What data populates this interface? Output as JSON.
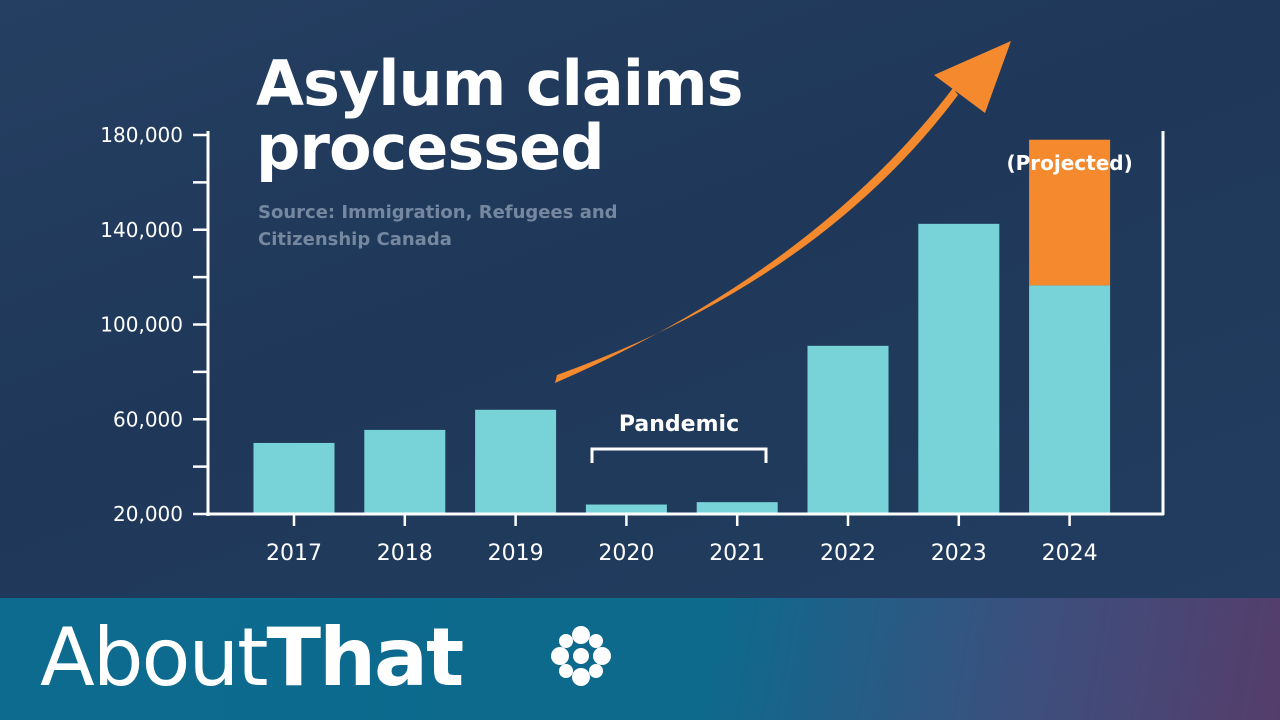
{
  "title": "Asylum claims processed",
  "source": "Source:  Immigration, Refugees and Citizenship Canada",
  "brand": {
    "part1": "About",
    "part2": "That",
    "logo_icon": "cbc-gem-icon"
  },
  "colors": {
    "bar": "#77d3d8",
    "projected": "#f5892d",
    "arrow": "#f5892d",
    "axis": "#ffffff",
    "text": "#ffffff",
    "source_text": "#7687a0",
    "footer": "#0c6b8e"
  },
  "chart_data": {
    "type": "bar",
    "title": "Asylum claims processed",
    "categories": [
      "2017",
      "2018",
      "2019",
      "2020",
      "2021",
      "2022",
      "2023",
      "2024"
    ],
    "series": [
      {
        "values": [
          50000,
          55500,
          64000,
          24000,
          25000,
          91000,
          142500,
          116500
        ]
      },
      {
        "name": "(Projected)",
        "values": [
          0,
          0,
          0,
          0,
          0,
          0,
          0,
          61500
        ]
      }
    ],
    "ylim": [
      20000,
      180000
    ],
    "yticks": [
      20000,
      60000,
      100000,
      140000,
      180000
    ],
    "ytick_labels": [
      "20,000",
      "60,000",
      "100,000",
      "140,000",
      "180,000"
    ],
    "minor_yticks": [
      40000,
      80000,
      120000,
      160000
    ],
    "annotations": [
      {
        "text": "Pandemic",
        "spans": [
          "2020",
          "2021"
        ]
      },
      {
        "text": "(Projected)",
        "category": "2024"
      }
    ],
    "trend_arrow": {
      "from": "2019",
      "to": "2024",
      "direction": "up"
    },
    "grid": false
  }
}
